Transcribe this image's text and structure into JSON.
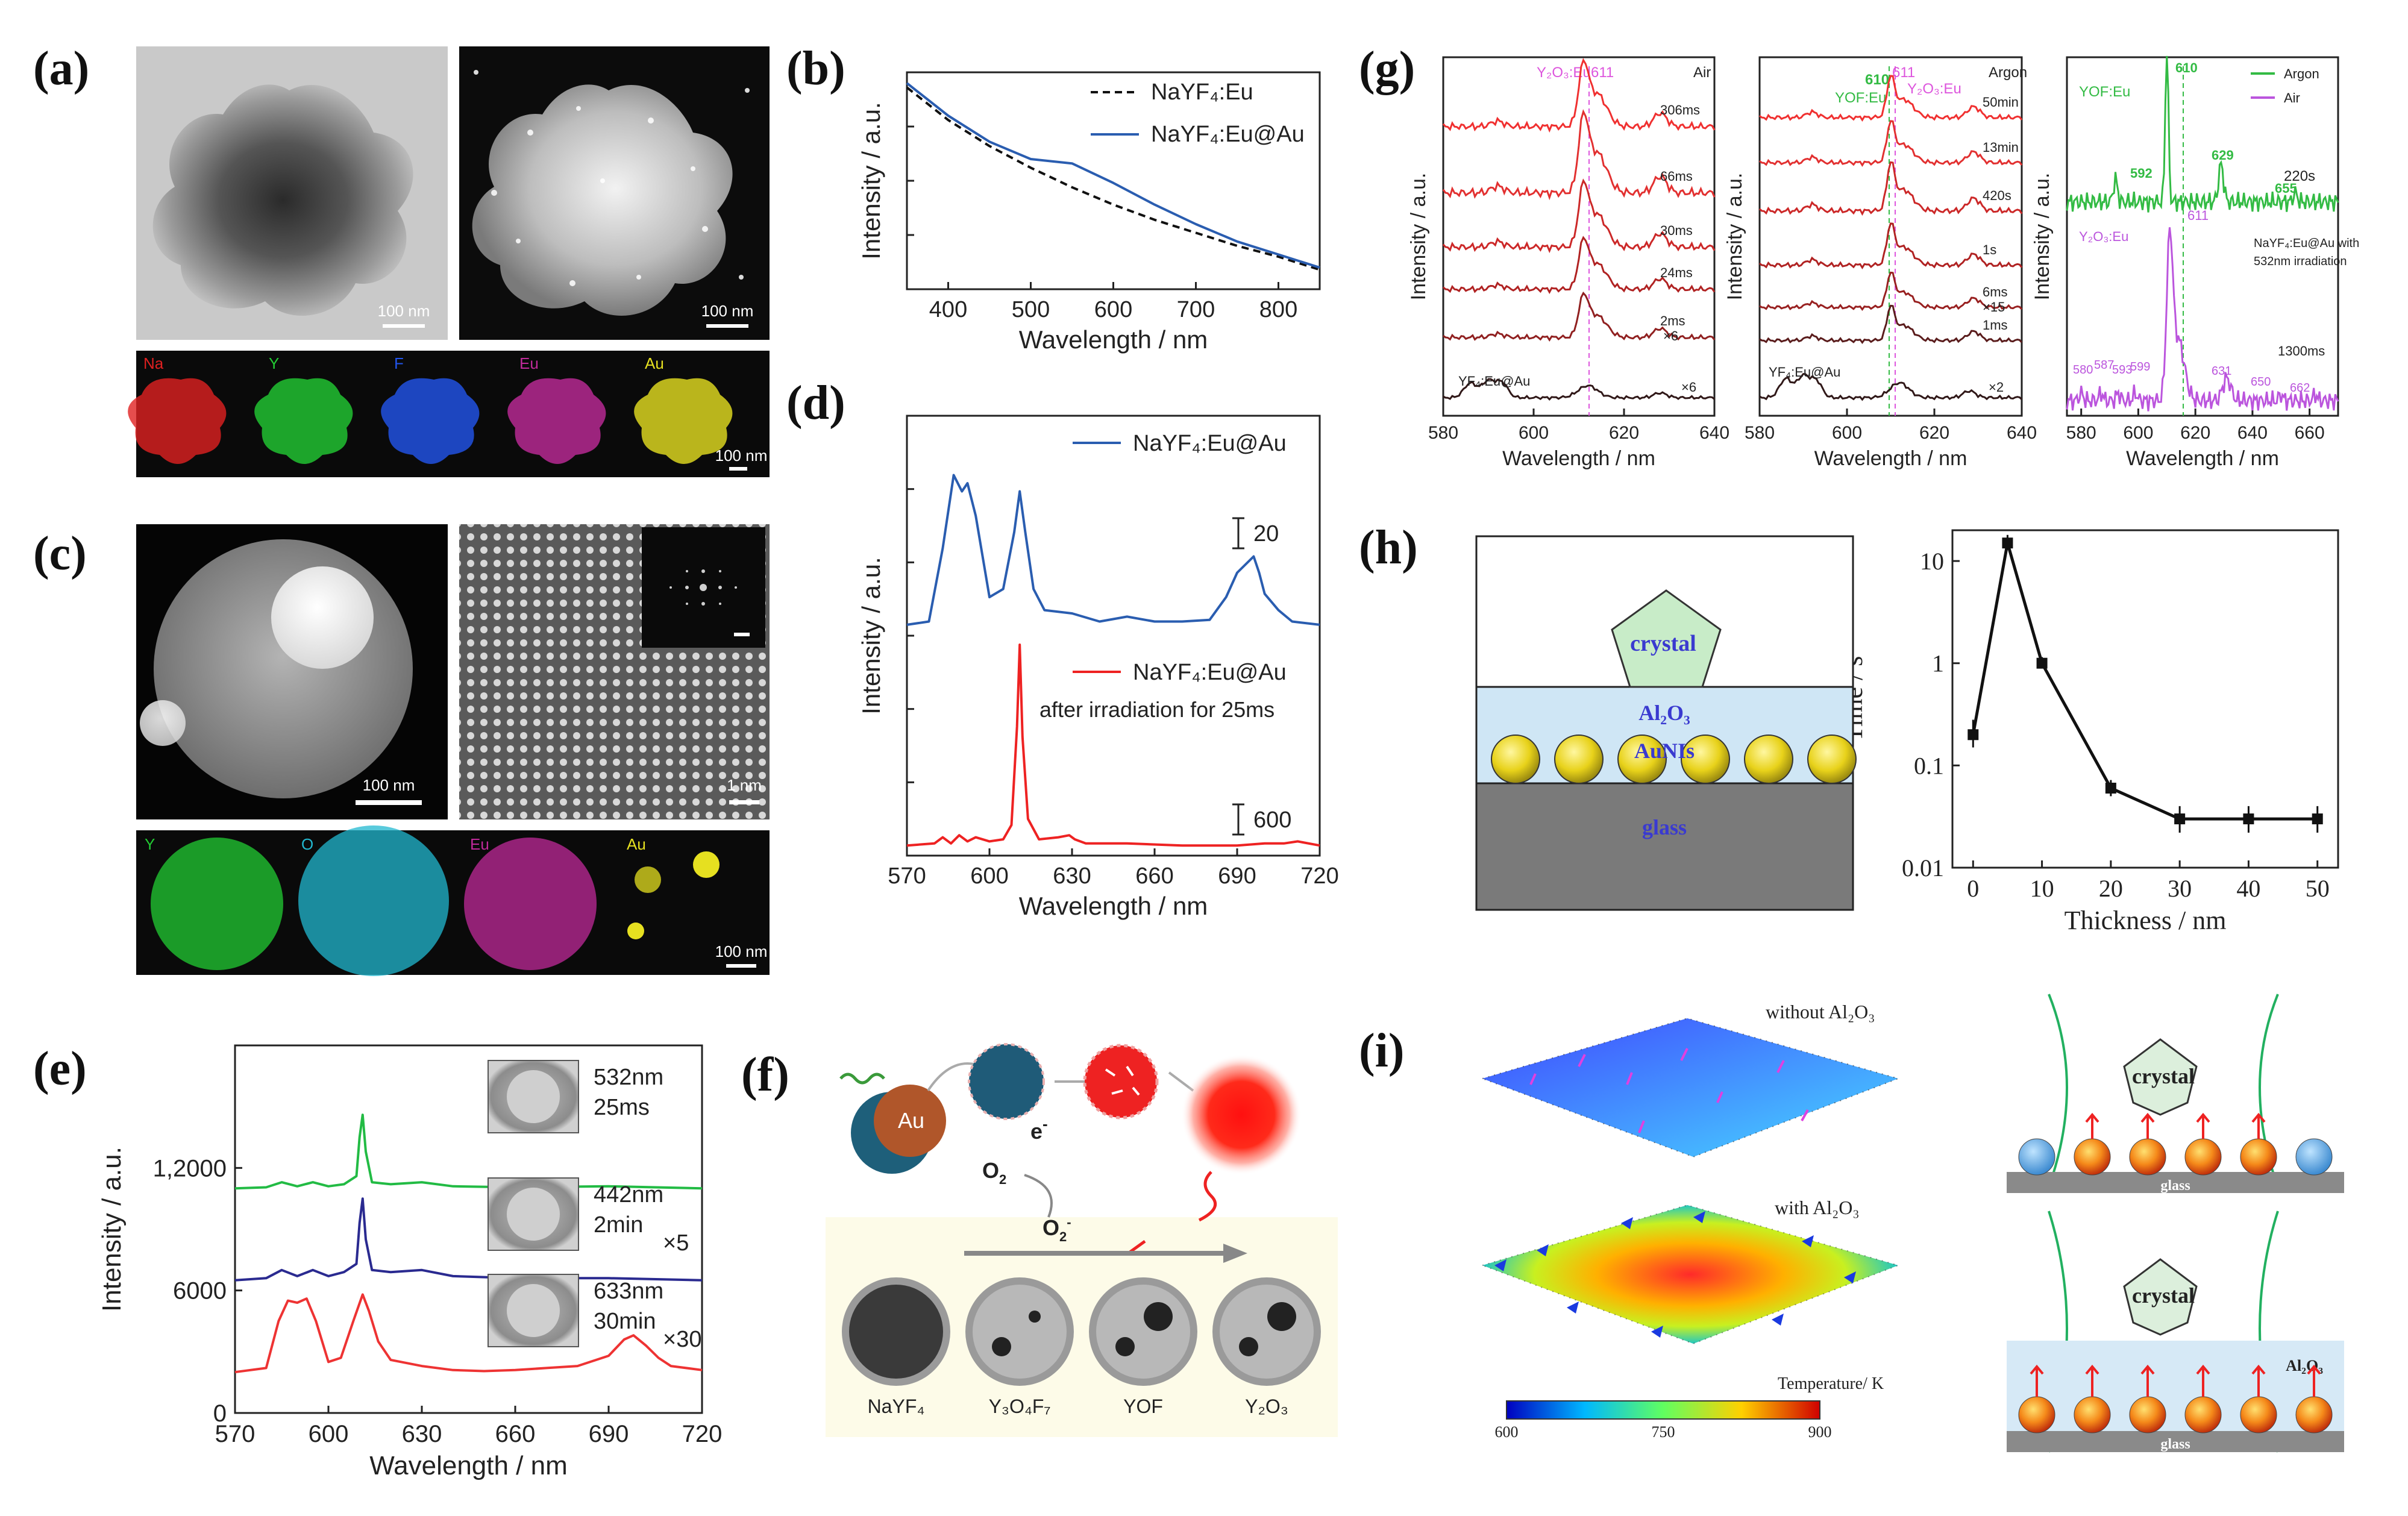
{
  "panels": {
    "a": "(a)",
    "b": "(b)",
    "c": "(c)",
    "d": "(d)",
    "e": "(e)",
    "f": "(f)",
    "g": "(g)",
    "h": "(h)",
    "i": "(i)"
  },
  "a": {
    "scale1": "100 nm",
    "scale2": "100 nm",
    "scale3": "100 nm",
    "maps": [
      {
        "label": "Na",
        "color": "#e02020"
      },
      {
        "label": "Y",
        "color": "#22cc33"
      },
      {
        "label": "F",
        "color": "#2255ee"
      },
      {
        "label": "Eu",
        "color": "#c02a9a"
      },
      {
        "label": "Au",
        "color": "#e6e020"
      }
    ]
  },
  "c": {
    "scale1": "100 nm",
    "scale2": "1 nm",
    "scale3": "100 nm",
    "maps": [
      {
        "label": "Y",
        "color": "#22cc33"
      },
      {
        "label": "O",
        "color": "#22b8d0"
      },
      {
        "label": "Eu",
        "color": "#c02a9a"
      },
      {
        "label": "Au",
        "color": "#e6e020"
      }
    ]
  },
  "f": {
    "eminus": "e",
    "eminus_sup": "-",
    "o2": "O",
    "o2_sub": "2",
    "o2m": "O",
    "o2m_sub": "2",
    "o2m_sup": "-",
    "au": "Au",
    "phases": [
      "NaYF₄",
      "Y₃O₄F₇",
      "YOF",
      "Y₂O₃"
    ]
  },
  "h": {
    "crystal": "crystal",
    "al2o3": "Al₂O₃",
    "aunis": "AuNIs",
    "glass": "glass"
  },
  "i": {
    "without": "without Al₂O₃",
    "with": "with Al₂O₃",
    "temp_label": "Temperature/ K",
    "temp_ticks": [
      "600",
      "750",
      "900"
    ],
    "crystal1": "crystal",
    "crystal2": "crystal",
    "glass1": "glass",
    "glass2": "glass",
    "al2o3": "Al₂O₃"
  },
  "chart_data": [
    {
      "id": "b",
      "type": "line",
      "title": "",
      "xlabel": "Wavelength / nm",
      "ylabel": "Intensity / a.u.",
      "xlim": [
        350,
        850
      ],
      "xticks": [
        "400",
        "500",
        "600",
        "700",
        "800"
      ],
      "legend": [
        {
          "label": "NaYF₄:Eu",
          "color": "#111111",
          "dash": true
        },
        {
          "label": "NaYF₄:Eu@Au",
          "color": "#2a5db0",
          "dash": false
        }
      ],
      "series": [
        {
          "name": "NaYF₄:Eu",
          "color": "#111111",
          "dash": true,
          "x": [
            350,
            400,
            450,
            500,
            550,
            600,
            650,
            700,
            750,
            800,
            850
          ],
          "y": [
            0.93,
            0.78,
            0.66,
            0.56,
            0.47,
            0.39,
            0.32,
            0.26,
            0.2,
            0.15,
            0.09
          ]
        },
        {
          "name": "NaYF₄:Eu@Au",
          "color": "#2a5db0",
          "dash": false,
          "x": [
            350,
            400,
            450,
            500,
            550,
            600,
            650,
            700,
            750,
            800,
            850
          ],
          "y": [
            0.95,
            0.8,
            0.68,
            0.6,
            0.58,
            0.49,
            0.39,
            0.3,
            0.22,
            0.16,
            0.1
          ]
        }
      ]
    },
    {
      "id": "d",
      "type": "line",
      "xlabel": "Wavelength / nm",
      "ylabel": "Intensity / a.u.",
      "xlim": [
        570,
        720
      ],
      "xticks": [
        "570",
        "600",
        "630",
        "660",
        "690",
        "720"
      ],
      "legend_top": "NaYF₄:Eu@Au",
      "legend_bottom": "NaYF₄:Eu@Au",
      "note_bottom": "after irradiation for 25ms",
      "scale_top": "20",
      "scale_bottom": "600",
      "series": [
        {
          "name": "NaYF₄:Eu@Au",
          "color": "#2a5db0",
          "x": [
            570,
            578,
            583,
            587,
            590,
            592,
            595,
            600,
            605,
            609,
            611,
            613,
            616,
            620,
            630,
            640,
            650,
            660,
            670,
            680,
            686,
            690,
            693,
            696,
            698,
            700,
            705,
            710,
            720
          ],
          "y": [
            0.03,
            0.05,
            0.5,
            0.95,
            0.85,
            0.9,
            0.7,
            0.2,
            0.25,
            0.6,
            0.85,
            0.6,
            0.25,
            0.12,
            0.1,
            0.05,
            0.08,
            0.05,
            0.05,
            0.06,
            0.2,
            0.35,
            0.4,
            0.45,
            0.35,
            0.22,
            0.12,
            0.05,
            0.03
          ]
        },
        {
          "name": "NaYF₄:Eu@Au after irradiation for 25ms",
          "color": "#ee2222",
          "x": [
            570,
            580,
            583,
            586,
            589,
            592,
            595,
            600,
            605,
            608,
            610,
            611,
            612,
            614,
            618,
            625,
            629,
            631,
            635,
            650,
            670,
            690,
            700,
            707,
            712,
            720
          ],
          "y": [
            0.02,
            0.03,
            0.06,
            0.03,
            0.07,
            0.04,
            0.06,
            0.04,
            0.05,
            0.12,
            0.6,
            1.0,
            0.55,
            0.15,
            0.05,
            0.06,
            0.07,
            0.05,
            0.03,
            0.03,
            0.02,
            0.02,
            0.03,
            0.03,
            0.04,
            0.02
          ]
        }
      ]
    },
    {
      "id": "e",
      "type": "line",
      "xlabel": "Wavelength / nm",
      "ylabel": "Intensity / a.u.",
      "xlim": [
        570,
        720
      ],
      "ylim": [
        0,
        18000
      ],
      "xticks": [
        "570",
        "600",
        "630",
        "660",
        "690",
        "720"
      ],
      "yticks": [
        "0",
        "6000",
        "1,2000"
      ],
      "series": [
        {
          "name": "532nm 25ms",
          "label1": "532nm",
          "label2": "25ms",
          "mult": "",
          "color": "#22bb44",
          "base": 11000,
          "x": [
            570,
            580,
            585,
            590,
            595,
            600,
            605,
            609,
            610,
            611,
            612,
            614,
            620,
            630,
            640,
            660,
            690,
            720
          ],
          "y": [
            0,
            50,
            300,
            100,
            300,
            100,
            200,
            600,
            2500,
            3600,
            1800,
            300,
            200,
            300,
            100,
            50,
            100,
            0
          ]
        },
        {
          "name": "442nm 2min ×5",
          "label1": "442nm",
          "label2": "2min",
          "mult": "×5",
          "color": "#2a2a90",
          "base": 6500,
          "x": [
            570,
            580,
            585,
            590,
            595,
            600,
            605,
            609,
            610,
            611,
            612,
            614,
            620,
            630,
            640,
            660,
            690,
            720
          ],
          "y": [
            0,
            100,
            500,
            200,
            500,
            200,
            400,
            800,
            2800,
            4000,
            2000,
            500,
            400,
            500,
            200,
            100,
            100,
            0
          ]
        },
        {
          "name": "633nm 30min ×30",
          "label1": "633nm",
          "label2": "30min",
          "mult": "×30",
          "color": "#ee3333",
          "base": 2000,
          "x": [
            570,
            580,
            584,
            587,
            590,
            593,
            596,
            600,
            604,
            608,
            611,
            613,
            616,
            620,
            630,
            640,
            650,
            660,
            670,
            680,
            690,
            695,
            698,
            702,
            706,
            710,
            720
          ],
          "y": [
            0,
            200,
            2500,
            3500,
            3400,
            3600,
            2500,
            500,
            700,
            2500,
            3800,
            3000,
            1500,
            600,
            300,
            100,
            50,
            100,
            200,
            300,
            800,
            1600,
            1800,
            1300,
            700,
            300,
            100
          ]
        }
      ]
    },
    {
      "id": "g1",
      "type": "line",
      "xlabel": "Wavelength / nm",
      "ylabel": "Intensity / a.u.",
      "xlim": [
        580,
        640
      ],
      "xticks": [
        "580",
        "600",
        "620",
        "640"
      ],
      "condition": "Air",
      "peak_label": "Y₂O₃:Eu",
      "peak_value": "611",
      "bottom_label": "YF₄:Eu@Au",
      "traces": [
        {
          "label": "306ms",
          "mult": "",
          "color": "#f03030"
        },
        {
          "label": "66ms",
          "mult": "",
          "color": "#e23030"
        },
        {
          "label": "30ms",
          "mult": "",
          "color": "#cc2828"
        },
        {
          "label": "24ms",
          "mult": "",
          "color": "#b02222"
        },
        {
          "label": "2ms",
          "mult": "×6",
          "color": "#902020"
        },
        {
          "label": "",
          "mult": "×6",
          "color": "#301818"
        }
      ]
    },
    {
      "id": "g2",
      "type": "line",
      "xlabel": "Wavelength / nm",
      "ylabel": "Intensity / a.u.",
      "xlim": [
        580,
        640
      ],
      "xticks": [
        "580",
        "600",
        "620",
        "640"
      ],
      "condition": "Argon",
      "peak_label1": "YOF:Eu",
      "peak_value1": "610",
      "peak_label2": "Y₂O₃:Eu",
      "peak_value2": "611",
      "bottom_label": "YF₄:Eu@Au",
      "traces": [
        {
          "label": "50min",
          "mult": "",
          "color": "#f03030"
        },
        {
          "label": "13min",
          "mult": "",
          "color": "#e23030"
        },
        {
          "label": "420s",
          "mult": "",
          "color": "#cc2828"
        },
        {
          "label": "1s",
          "mult": "",
          "color": "#b02222"
        },
        {
          "label": "6ms",
          "mult": "",
          "color": "#982020"
        },
        {
          "label": "1ms",
          "mult": "×15",
          "color": "#5a1c1c"
        },
        {
          "label": "",
          "mult": "×2",
          "color": "#301818"
        }
      ]
    },
    {
      "id": "g3",
      "type": "line",
      "xlabel": "Wavelength / nm",
      "ylabel": "Intensity / a.u.",
      "xlim": [
        575,
        670
      ],
      "xticks": [
        "580",
        "600",
        "620",
        "640",
        "660"
      ],
      "legend": [
        {
          "label": "Argon",
          "color": "#33bb44"
        },
        {
          "label": "Air",
          "color": "#bb55dd"
        }
      ],
      "green_label": "YOF:Eu",
      "green_time": "220s",
      "green_peaks": [
        "592",
        "610",
        "629",
        "655"
      ],
      "violet_label": "Y₂O₃:Eu",
      "violet_peak": "611",
      "violet_time": "1300ms",
      "violet_peaks": [
        "580",
        "587",
        "593",
        "599",
        "631",
        "650",
        "662"
      ],
      "note1": "NaYF₄:Eu@Au with",
      "note2": "532nm irradiation"
    },
    {
      "id": "h",
      "type": "line",
      "xlabel": "Thickness / nm",
      "ylabel": "Time / s",
      "xlim": [
        -3,
        53
      ],
      "yscale": "log",
      "ylim": [
        0.01,
        20
      ],
      "xticks": [
        "0",
        "10",
        "20",
        "30",
        "40",
        "50"
      ],
      "yticks": [
        "0.01",
        "0.1",
        "1",
        "10"
      ],
      "x": [
        0,
        5,
        10,
        20,
        30,
        40,
        50
      ],
      "y": [
        0.2,
        15,
        1.0,
        0.06,
        0.03,
        0.03,
        0.03
      ],
      "err_lo": [
        0.15,
        13,
        0.9,
        0.05,
        0.022,
        0.022,
        0.022
      ],
      "err_hi": [
        0.28,
        18,
        1.15,
        0.072,
        0.04,
        0.04,
        0.04
      ]
    }
  ]
}
